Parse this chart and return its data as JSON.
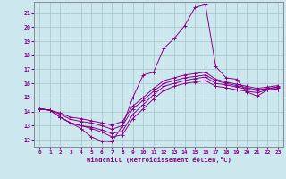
{
  "xlabel": "Windchill (Refroidissement éolien,°C)",
  "background_color": "#cce8ee",
  "grid_color": "#aacccc",
  "line_color": "#880088",
  "xlim": [
    -0.5,
    23.5
  ],
  "ylim": [
    11.5,
    21.8
  ],
  "xticks": [
    0,
    1,
    2,
    3,
    4,
    5,
    6,
    7,
    8,
    9,
    10,
    11,
    12,
    13,
    14,
    15,
    16,
    17,
    18,
    19,
    20,
    21,
    22,
    23
  ],
  "yticks": [
    12,
    13,
    14,
    15,
    16,
    17,
    18,
    19,
    20,
    21
  ],
  "series": [
    [
      14.2,
      14.1,
      13.6,
      13.2,
      12.8,
      12.2,
      11.9,
      11.85,
      13.0,
      15.0,
      16.6,
      16.8,
      18.5,
      19.2,
      20.1,
      21.4,
      21.6,
      17.2,
      16.4,
      16.3,
      15.4,
      15.1,
      15.55,
      15.6
    ],
    [
      14.2,
      14.1,
      13.6,
      13.2,
      13.0,
      12.8,
      12.55,
      12.2,
      12.35,
      13.5,
      14.2,
      14.9,
      15.5,
      15.8,
      16.0,
      16.1,
      16.2,
      15.8,
      15.7,
      15.55,
      15.45,
      15.35,
      15.55,
      15.6
    ],
    [
      14.2,
      14.1,
      13.6,
      13.2,
      13.0,
      12.9,
      12.7,
      12.45,
      12.6,
      13.8,
      14.5,
      15.2,
      15.8,
      16.0,
      16.2,
      16.35,
      16.45,
      16.0,
      15.9,
      15.75,
      15.6,
      15.5,
      15.65,
      15.7
    ],
    [
      14.2,
      14.1,
      13.8,
      13.45,
      13.3,
      13.2,
      13.0,
      12.75,
      13.0,
      14.2,
      14.8,
      15.45,
      16.0,
      16.2,
      16.4,
      16.5,
      16.6,
      16.2,
      16.0,
      15.85,
      15.7,
      15.55,
      15.65,
      15.75
    ],
    [
      14.2,
      14.1,
      13.9,
      13.6,
      13.5,
      13.35,
      13.2,
      13.05,
      13.3,
      14.4,
      15.0,
      15.65,
      16.2,
      16.4,
      16.6,
      16.7,
      16.8,
      16.3,
      16.1,
      15.95,
      15.8,
      15.65,
      15.75,
      15.85
    ]
  ]
}
